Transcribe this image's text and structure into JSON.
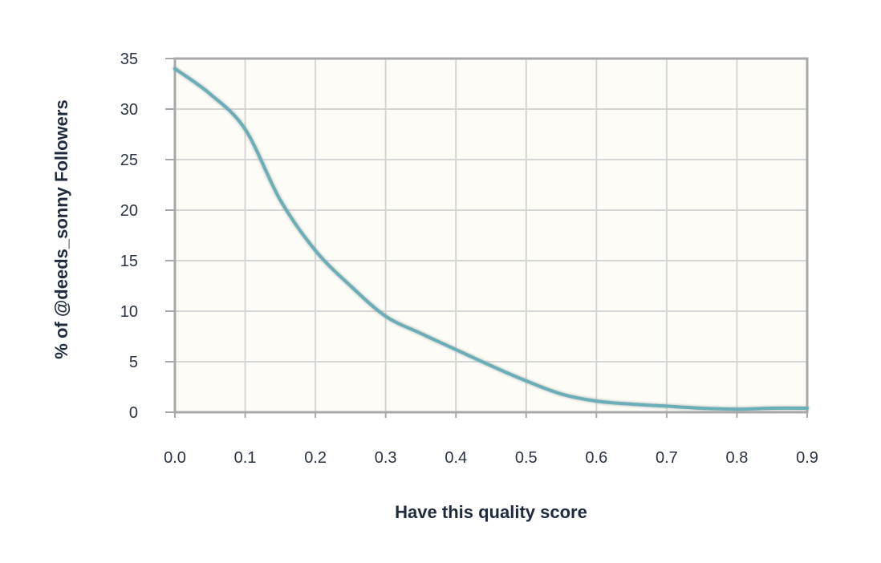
{
  "chart_data": {
    "type": "line",
    "title": "",
    "xlabel": "Have this quality score",
    "ylabel": "% of @deeds_sonny Followers",
    "xlim": [
      0,
      0.9
    ],
    "ylim": [
      0,
      35
    ],
    "x_ticks": [
      "0.0",
      "0.1",
      "0.2",
      "0.3",
      "0.4",
      "0.5",
      "0.6",
      "0.7",
      "0.8",
      "0.9"
    ],
    "y_ticks": [
      "0",
      "5",
      "10",
      "15",
      "20",
      "25",
      "30",
      "35"
    ],
    "grid": true,
    "legend": "none",
    "colors": {
      "line": "#6aaeb8",
      "plot_bg": "#fdfcf6",
      "grid": "#d6d6d6",
      "frame": "#a9a9a9"
    },
    "series": [
      {
        "x": [
          0.0,
          0.05,
          0.1,
          0.15,
          0.2,
          0.25,
          0.3,
          0.35,
          0.4,
          0.45,
          0.5,
          0.55,
          0.6,
          0.65,
          0.7,
          0.75,
          0.8,
          0.85,
          0.9
        ],
        "values": [
          34.0,
          31.5,
          28.0,
          21.0,
          16.0,
          12.5,
          9.5,
          7.8,
          6.2,
          4.6,
          3.1,
          1.8,
          1.1,
          0.8,
          0.6,
          0.4,
          0.3,
          0.4,
          0.4
        ]
      }
    ]
  }
}
